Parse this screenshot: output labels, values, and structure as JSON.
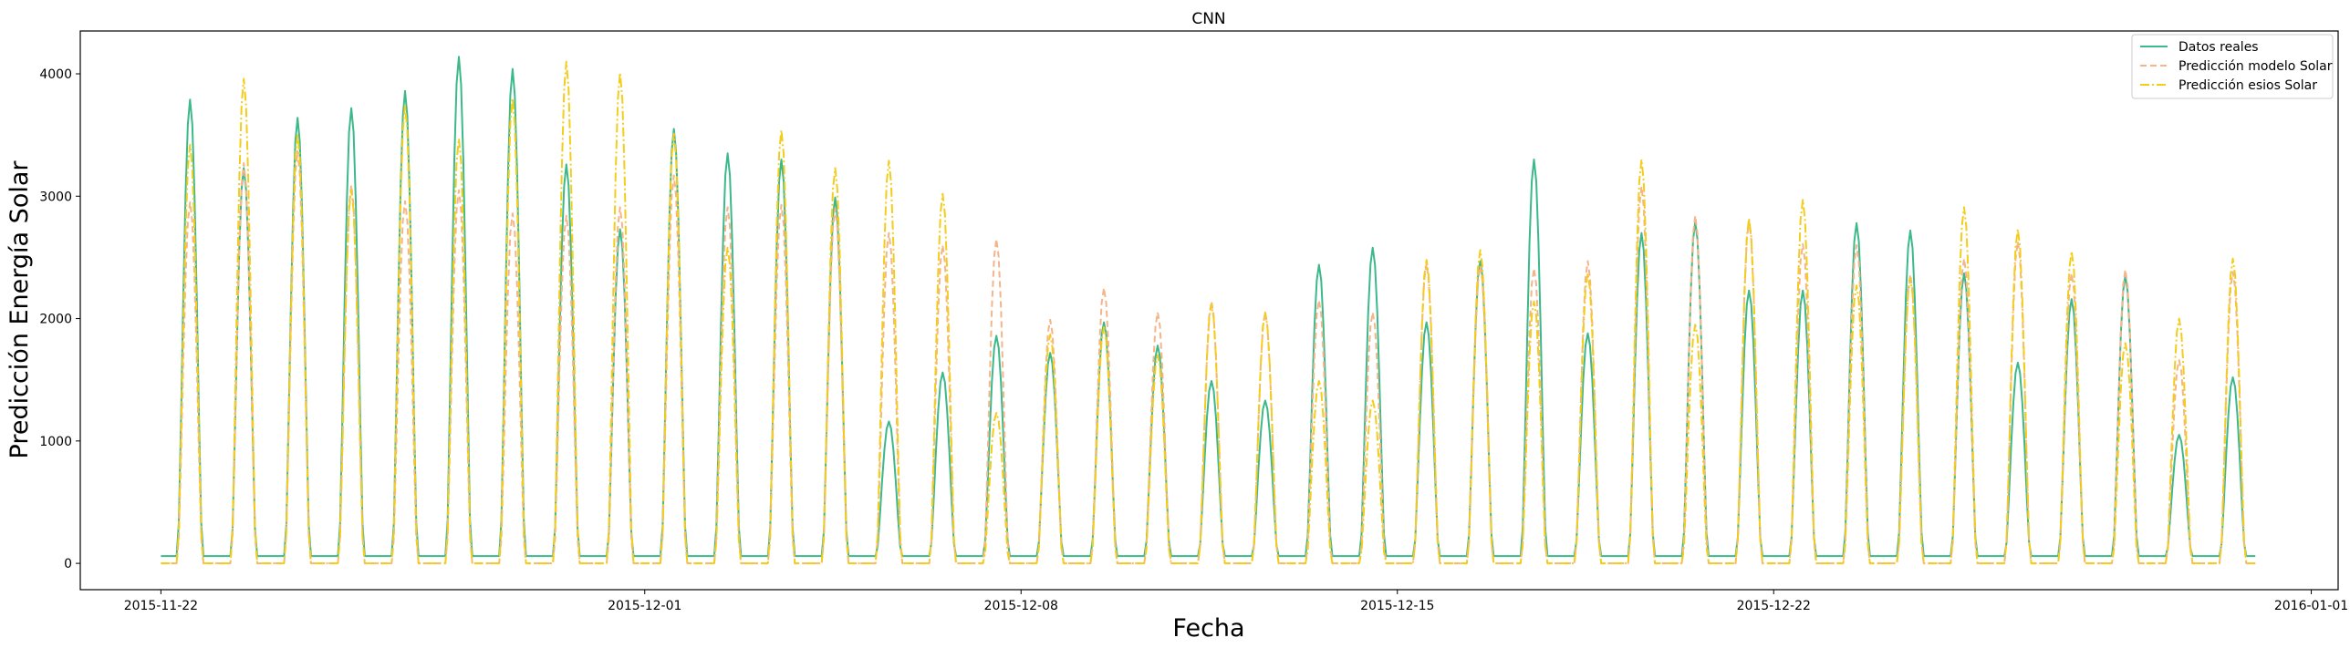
{
  "chart_data": {
    "type": "line",
    "title": "CNN",
    "xlabel": "Fecha",
    "ylabel": "Predicción Energía Solar",
    "xlim": [
      "2015-11-20T12:00",
      "2016-01-01T12:00"
    ],
    "ylim": [
      -215,
      4350
    ],
    "x_ticks": [
      "2015-11-22",
      "2015-12-01",
      "2015-12-08",
      "2015-12-15",
      "2015-12-22",
      "2016-01-01"
    ],
    "y_ticks": [
      0,
      1000,
      2000,
      3000,
      4000
    ],
    "grid": false,
    "legend": {
      "placement": "top-right"
    },
    "x_start": "2015-11-22",
    "x_step_hours": 1,
    "series": [
      {
        "name": "Datos reales",
        "color": "#3cb98a",
        "dash": "solid",
        "night": 60,
        "daily_peaks": [
          3790,
          3230,
          3640,
          3720,
          3860,
          4140,
          4040,
          3260,
          2730,
          3550,
          3350,
          3300,
          2990,
          1160,
          1560,
          1860,
          1720,
          1970,
          1780,
          1490,
          1330,
          2440,
          2580,
          1970,
          2470,
          3300,
          1880,
          2700,
          2790,
          2230,
          2230,
          2780,
          2720,
          2370,
          1640,
          2160,
          2350,
          1050,
          1520
        ]
      },
      {
        "name": "Predicción modelo Solar",
        "color": "#f5b58a",
        "dash": "dashed",
        "night": 0,
        "daily_peaks": [
          2950,
          3270,
          3370,
          3090,
          2960,
          3050,
          2860,
          2840,
          2910,
          3170,
          2910,
          2930,
          2900,
          2700,
          2600,
          2650,
          1990,
          2250,
          2050,
          2140,
          2050,
          2150,
          2050,
          2450,
          2430,
          2410,
          2470,
          3080,
          2840,
          2800,
          2610,
          2600,
          2360,
          2490,
          2630,
          2370,
          2400,
          1660,
          2380
        ]
      },
      {
        "name": "Predicción esios Solar",
        "color": "#f4cd1c",
        "dash": "dashdot",
        "night": 0,
        "daily_peaks": [
          3420,
          3960,
          3510,
          3050,
          3740,
          3470,
          3800,
          4100,
          4010,
          3510,
          2580,
          3540,
          3230,
          3290,
          3020,
          1230,
          1870,
          1930,
          1700,
          2120,
          2050,
          1490,
          1330,
          2480,
          2560,
          2140,
          2370,
          3300,
          1950,
          2820,
          2970,
          2270,
          2330,
          2910,
          2730,
          2550,
          1800,
          2000,
          2490
        ]
      }
    ]
  }
}
